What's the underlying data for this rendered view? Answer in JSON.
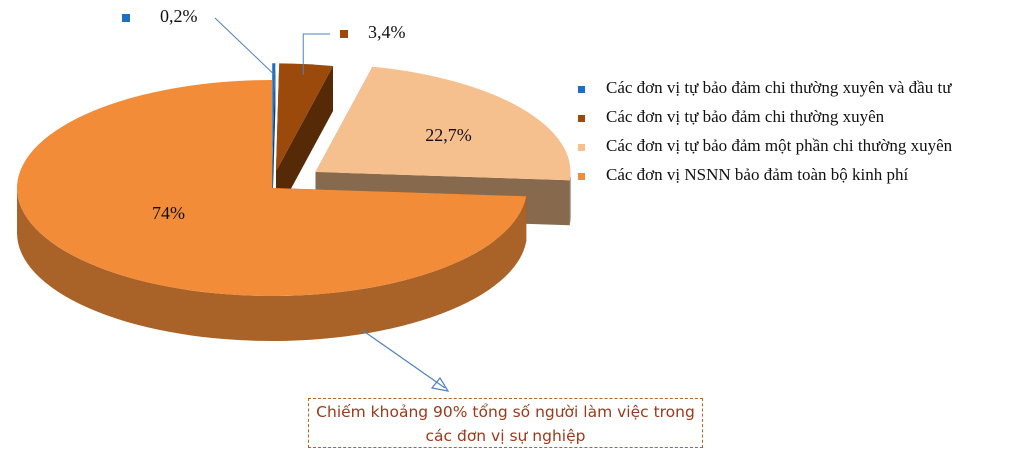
{
  "chart_data": {
    "type": "pie",
    "categories": [
      "Các đơn vị tự bảo đảm chi thường xuyên và đầu tư",
      "Các đơn vị tự bảo đảm chi thường xuyên",
      "Các đơn vị tự bảo đảm một phần chi thường xuyên",
      "Các đơn vị NSNN bảo đảm toàn bộ kinh phí"
    ],
    "values": [
      0.2,
      3.4,
      22.7,
      74
    ],
    "value_labels": [
      "0,2%",
      "3,4%",
      "22,7%",
      "74%"
    ],
    "colors": [
      "#1f6fbf",
      "#9c4a0c",
      "#f6c08e",
      "#f28c38"
    ],
    "annotation": "Chiếm khoảng 90% tổng số người làm việc trong các đơn vị sự nghiệp"
  }
}
